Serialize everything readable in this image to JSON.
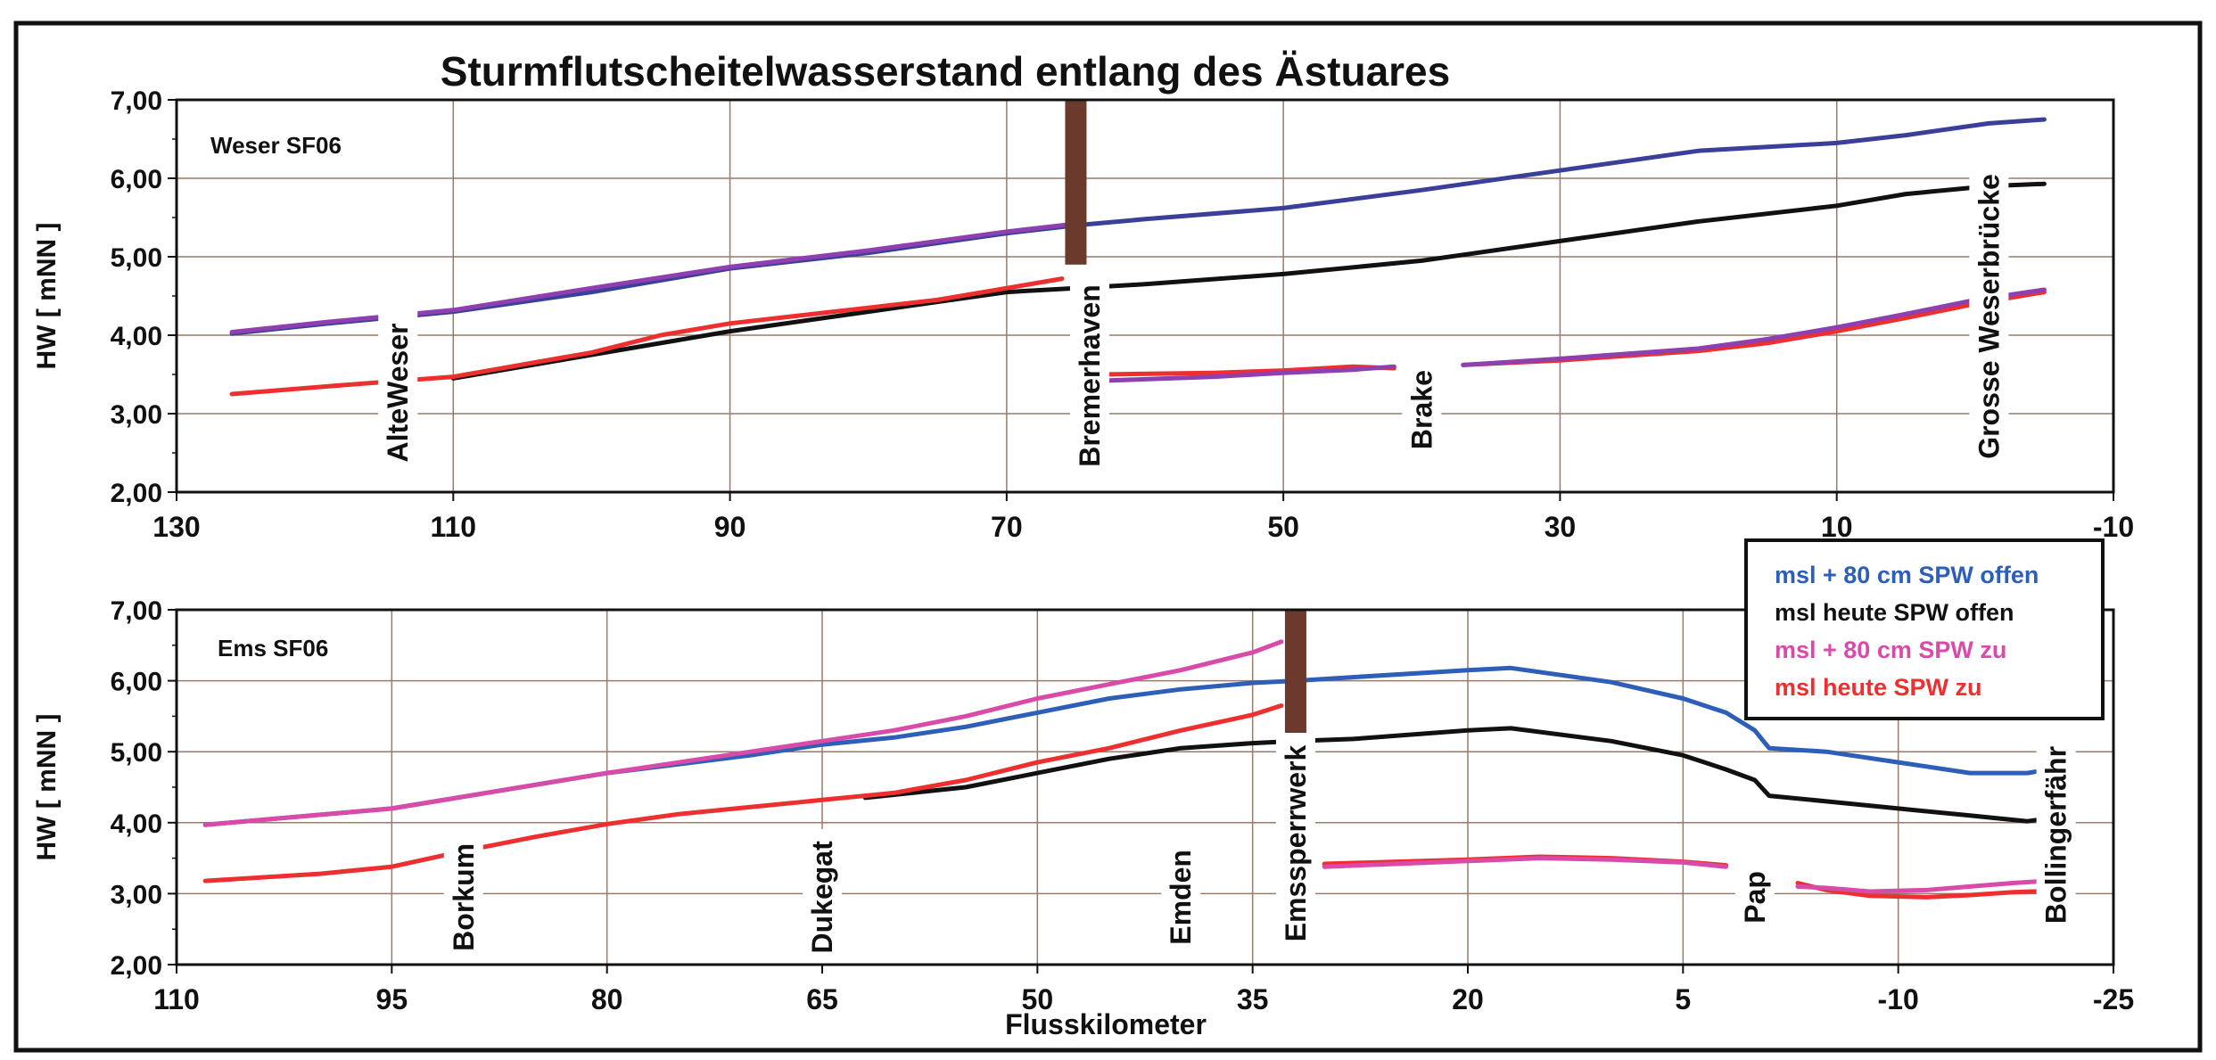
{
  "title": "Sturmflutscheitelwasserstand entlang des Ästuares",
  "xlabel": "Flusskilometer",
  "colors": {
    "blue": "#2d5fb8",
    "black": "#111111",
    "magenta": "#d84ba8",
    "red": "#ee2f2f",
    "weser_upper": "#3a3f9a",
    "weser_lower": "#8e3fb0",
    "barrier": "#6b3a2c",
    "grid": "#9a7a6a"
  },
  "legend": {
    "items": [
      {
        "label": "msl + 80 cm SPW offen",
        "color": "#2d5fb8"
      },
      {
        "label": "msl heute SPW offen",
        "color": "#111111"
      },
      {
        "label": "msl + 80 cm SPW zu",
        "color": "#d84ba8"
      },
      {
        "label": "msl  heute SPW zu",
        "color": "#ee2f2f"
      }
    ]
  },
  "chart_data": [
    {
      "type": "line",
      "panel_label": "Weser SF06",
      "ylabel": "HW [ mNN ]",
      "xlim": [
        130,
        -10
      ],
      "ylim": [
        2,
        7
      ],
      "x_ticks": [
        130,
        110,
        90,
        70,
        50,
        30,
        10,
        -10
      ],
      "x_tick_labels": [
        "130",
        "110",
        "90",
        "70",
        "50",
        "30",
        "10",
        "-10"
      ],
      "y_ticks": [
        2,
        3,
        4,
        5,
        6,
        7
      ],
      "y_tick_labels": [
        "2,00",
        "3,00",
        "4,00",
        "5,00",
        "6,00",
        "7,00"
      ],
      "barrier_km": 65,
      "annotations": [
        {
          "text": "AlteWeser",
          "x": 114
        },
        {
          "text": "Bremerhaven",
          "x": 64
        },
        {
          "text": "Brake",
          "x": 40
        },
        {
          "text": "Grosse Weserbrücke",
          "x": -1
        }
      ],
      "series": [
        {
          "color": "#3a3f9a",
          "x": [
            126,
            119,
            110,
            100,
            90,
            80,
            70,
            65,
            60,
            50,
            40,
            30,
            20,
            10,
            5,
            -1,
            -5
          ],
          "y": [
            4.02,
            4.15,
            4.3,
            4.55,
            4.85,
            5.05,
            5.3,
            5.4,
            5.48,
            5.62,
            5.85,
            6.1,
            6.35,
            6.45,
            6.55,
            6.7,
            6.75
          ]
        },
        {
          "color": "#8e3fb0",
          "x": [
            126,
            119,
            110,
            100,
            90,
            80,
            70,
            65
          ],
          "y": [
            4.04,
            4.17,
            4.32,
            4.6,
            4.87,
            5.08,
            5.32,
            5.42
          ]
        },
        {
          "color": "#111111",
          "x": [
            110,
            100,
            90,
            80,
            70,
            65,
            60,
            50,
            40,
            30,
            20,
            10,
            5,
            -1,
            -5
          ],
          "y": [
            3.45,
            3.75,
            4.05,
            4.3,
            4.55,
            4.6,
            4.65,
            4.78,
            4.95,
            5.2,
            5.45,
            5.65,
            5.8,
            5.9,
            5.93
          ]
        },
        {
          "color": "#ee2f2f",
          "x": [
            126,
            119,
            110,
            100,
            95,
            90,
            80,
            75,
            70,
            66
          ],
          "y": [
            3.25,
            3.35,
            3.47,
            3.78,
            4.0,
            4.15,
            4.35,
            4.45,
            4.6,
            4.72
          ]
        },
        {
          "color": "#ee2f2f",
          "x": [
            63,
            55,
            50,
            45,
            42
          ],
          "y": [
            3.5,
            3.52,
            3.55,
            3.6,
            3.58
          ]
        },
        {
          "color": "#8e3fb0",
          "x": [
            63,
            55,
            50,
            45,
            42
          ],
          "y": [
            3.42,
            3.47,
            3.52,
            3.56,
            3.6
          ]
        },
        {
          "color": "#ee2f2f",
          "x": [
            37,
            30,
            20,
            15,
            10,
            5,
            0,
            -5
          ],
          "y": [
            3.62,
            3.68,
            3.8,
            3.9,
            4.05,
            4.22,
            4.4,
            4.55
          ]
        },
        {
          "color": "#8e3fb0",
          "x": [
            37,
            30,
            20,
            15,
            10,
            5,
            0,
            -5
          ],
          "y": [
            3.62,
            3.7,
            3.83,
            3.95,
            4.1,
            4.27,
            4.45,
            4.58
          ]
        }
      ]
    },
    {
      "type": "line",
      "panel_label": "Ems SF06",
      "ylabel": "HW [ mNN ]",
      "xlim": [
        110,
        -25
      ],
      "ylim": [
        2,
        7
      ],
      "x_ticks": [
        110,
        95,
        80,
        65,
        50,
        35,
        20,
        5,
        -10,
        -25
      ],
      "x_tick_labels": [
        "110",
        "95",
        "80",
        "65",
        "50",
        "35",
        "20",
        "5",
        "-10",
        "-25"
      ],
      "y_ticks": [
        2,
        3,
        4,
        5,
        6,
        7
      ],
      "y_tick_labels": [
        "2,00",
        "3,00",
        "4,00",
        "5,00",
        "6,00",
        "7,00"
      ],
      "barrier_km": 32,
      "annotations": [
        {
          "text": "Borkum",
          "x": 90
        },
        {
          "text": "Dukegat",
          "x": 65
        },
        {
          "text": "Emden",
          "x": 40
        },
        {
          "text": "Emssperrwerk",
          "x": 32
        },
        {
          "text": "Pap",
          "x": 0
        },
        {
          "text": "Bollingerfähr",
          "x": -21
        }
      ],
      "series": [
        {
          "color": "#2d5fb8",
          "x": [
            108,
            95,
            80,
            70,
            65,
            60,
            55,
            50,
            45,
            40,
            35,
            32,
            28,
            20,
            17,
            10,
            5,
            2,
            0,
            -1,
            -5,
            -10,
            -15,
            -19,
            -22
          ],
          "y": [
            3.97,
            4.2,
            4.7,
            4.95,
            5.1,
            5.2,
            5.35,
            5.55,
            5.75,
            5.88,
            5.97,
            6.0,
            6.05,
            6.15,
            6.18,
            5.98,
            5.75,
            5.55,
            5.3,
            5.05,
            5.0,
            4.85,
            4.7,
            4.7,
            4.8
          ]
        },
        {
          "color": "#111111",
          "x": [
            62,
            55,
            50,
            45,
            40,
            35,
            32,
            28,
            20,
            17,
            10,
            5,
            2,
            0,
            -1,
            -5,
            -10,
            -15,
            -19,
            -22
          ],
          "y": [
            4.35,
            4.5,
            4.7,
            4.9,
            5.05,
            5.12,
            5.15,
            5.18,
            5.3,
            5.33,
            5.15,
            4.95,
            4.75,
            4.6,
            4.38,
            4.3,
            4.2,
            4.1,
            4.02,
            4.1
          ]
        },
        {
          "color": "#d84ba8",
          "x": [
            108,
            95,
            80,
            70,
            65,
            60,
            55,
            50,
            45,
            40,
            35,
            33
          ],
          "y": [
            3.97,
            4.2,
            4.7,
            5.0,
            5.15,
            5.3,
            5.5,
            5.75,
            5.95,
            6.15,
            6.4,
            6.55
          ]
        },
        {
          "color": "#ee2f2f",
          "x": [
            108,
            100,
            95,
            90,
            85,
            80,
            75,
            70,
            65,
            60,
            55,
            50,
            45,
            40,
            35,
            33
          ],
          "y": [
            3.18,
            3.28,
            3.38,
            3.6,
            3.8,
            3.98,
            4.12,
            4.22,
            4.32,
            4.42,
            4.6,
            4.85,
            5.05,
            5.3,
            5.52,
            5.65
          ]
        },
        {
          "color": "#ee2f2f",
          "x": [
            30,
            25,
            20,
            15,
            10,
            5,
            2
          ],
          "y": [
            3.42,
            3.45,
            3.48,
            3.52,
            3.5,
            3.45,
            3.4
          ]
        },
        {
          "color": "#d84ba8",
          "x": [
            30,
            25,
            20,
            15,
            10,
            5,
            2
          ],
          "y": [
            3.38,
            3.42,
            3.46,
            3.5,
            3.48,
            3.44,
            3.38
          ]
        },
        {
          "color": "#ee2f2f",
          "x": [
            -3,
            -5,
            -8,
            -12,
            -15,
            -18,
            -22
          ],
          "y": [
            3.15,
            3.05,
            2.97,
            2.95,
            2.98,
            3.02,
            3.05
          ]
        },
        {
          "color": "#d84ba8",
          "x": [
            -3,
            -5,
            -8,
            -12,
            -15,
            -18,
            -22
          ],
          "y": [
            3.1,
            3.08,
            3.03,
            3.05,
            3.1,
            3.15,
            3.2
          ]
        }
      ]
    }
  ]
}
